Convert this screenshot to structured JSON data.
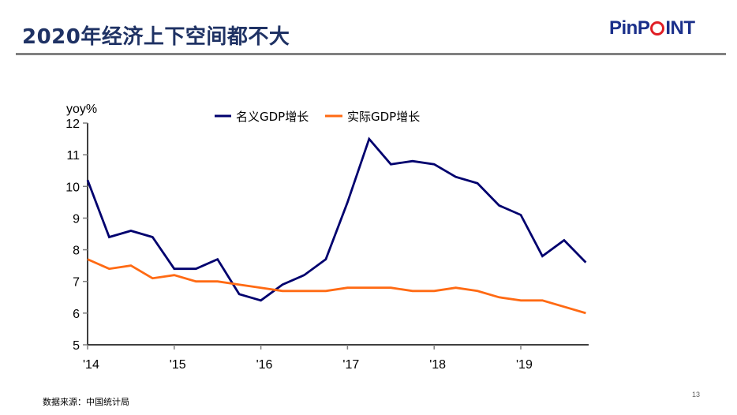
{
  "header": {
    "title": "2020年经济上下空间都不大",
    "logo_text_a": "Pin",
    "logo_text_b": "P",
    "logo_text_c": "INT"
  },
  "footer": {
    "source": "数据来源：中国统计局",
    "page_number": "13"
  },
  "colors": {
    "nominal": "#00006e",
    "real": "#ff6a13",
    "title": "#1f3264",
    "logo": "#1a2f8a",
    "logo_ring": "#e01e25"
  },
  "chart_data": {
    "type": "line",
    "title": "",
    "ylabel": "yoy%",
    "xlabel": "",
    "ylim": [
      5,
      12
    ],
    "yticks": [
      5,
      6,
      7,
      8,
      9,
      10,
      11,
      12
    ],
    "xtick_labels": [
      "'14",
      "'15",
      "'16",
      "'17",
      "'18",
      "'19"
    ],
    "xtick_quarter_index": [
      0,
      4,
      8,
      12,
      16,
      20
    ],
    "x": [
      "2014Q1",
      "2014Q2",
      "2014Q3",
      "2014Q4",
      "2015Q1",
      "2015Q2",
      "2015Q3",
      "2015Q4",
      "2016Q1",
      "2016Q2",
      "2016Q3",
      "2016Q4",
      "2017Q1",
      "2017Q2",
      "2017Q3",
      "2017Q4",
      "2018Q1",
      "2018Q2",
      "2018Q3",
      "2018Q4",
      "2019Q1",
      "2019Q2",
      "2019Q3",
      "2019Q4"
    ],
    "legend_position": "top",
    "grid": false,
    "series": [
      {
        "name": "名义GDP增长",
        "values": [
          10.2,
          8.4,
          8.6,
          8.4,
          7.4,
          7.4,
          7.7,
          6.6,
          6.4,
          6.9,
          7.2,
          7.7,
          9.5,
          11.5,
          10.7,
          10.8,
          10.7,
          10.3,
          10.1,
          9.4,
          9.1,
          7.8,
          8.3,
          7.6
        ]
      },
      {
        "name": "实际GDP增长",
        "values": [
          7.7,
          7.4,
          7.5,
          7.1,
          7.2,
          7.0,
          7.0,
          6.9,
          6.8,
          6.7,
          6.7,
          6.7,
          6.8,
          6.8,
          6.8,
          6.7,
          6.7,
          6.8,
          6.7,
          6.5,
          6.4,
          6.4,
          6.2,
          6.0
        ]
      }
    ]
  }
}
